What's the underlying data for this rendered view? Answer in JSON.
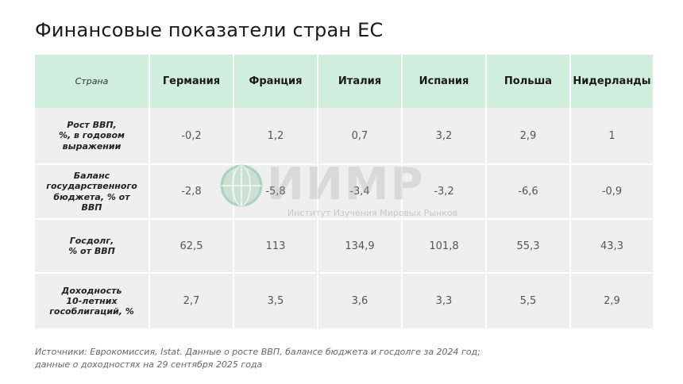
{
  "title": "Финансовые показатели стран ЕС",
  "table": {
    "corner": "Страна",
    "countries": [
      "Германия",
      "Франция",
      "Италия",
      "Испания",
      "Польша",
      "Нидерланды"
    ],
    "rows": [
      {
        "label": "Рост ВВП,\n%, в годовом\nвыражении",
        "values": [
          "-0,2",
          "1,2",
          "0,7",
          "3,2",
          "2,9",
          "1"
        ]
      },
      {
        "label": "Баланс\nгосударственного\nбюджета, % от ВВП",
        "values": [
          "-2,8",
          "-5,8",
          "-3,4",
          "-3,2",
          "-6,6",
          "-0,9"
        ]
      },
      {
        "label": "Госдолг,\n% от ВВП",
        "values": [
          "62,5",
          "113",
          "134,9",
          "101,8",
          "55,3",
          "43,3"
        ]
      },
      {
        "label": "Доходность\n10-летних\nгособлигаций, %",
        "values": [
          "2,7",
          "3,5",
          "3,6",
          "3,3",
          "5,5",
          "2,9"
        ]
      }
    ]
  },
  "watermark": {
    "logo": "ИИМР",
    "subtitle": "Институт Изучения Мировых Рынков"
  },
  "source": "Источники: Еврокомиссия, Istat. Данные о росте ВВП, балансе бюджета и госдолге за 2024 год;\nданные о доходностях на 29 сентября 2025 года",
  "colors": {
    "header_bg": "#cfeedd",
    "row_bg": "#efefef",
    "logo_green": "#4caf78"
  }
}
